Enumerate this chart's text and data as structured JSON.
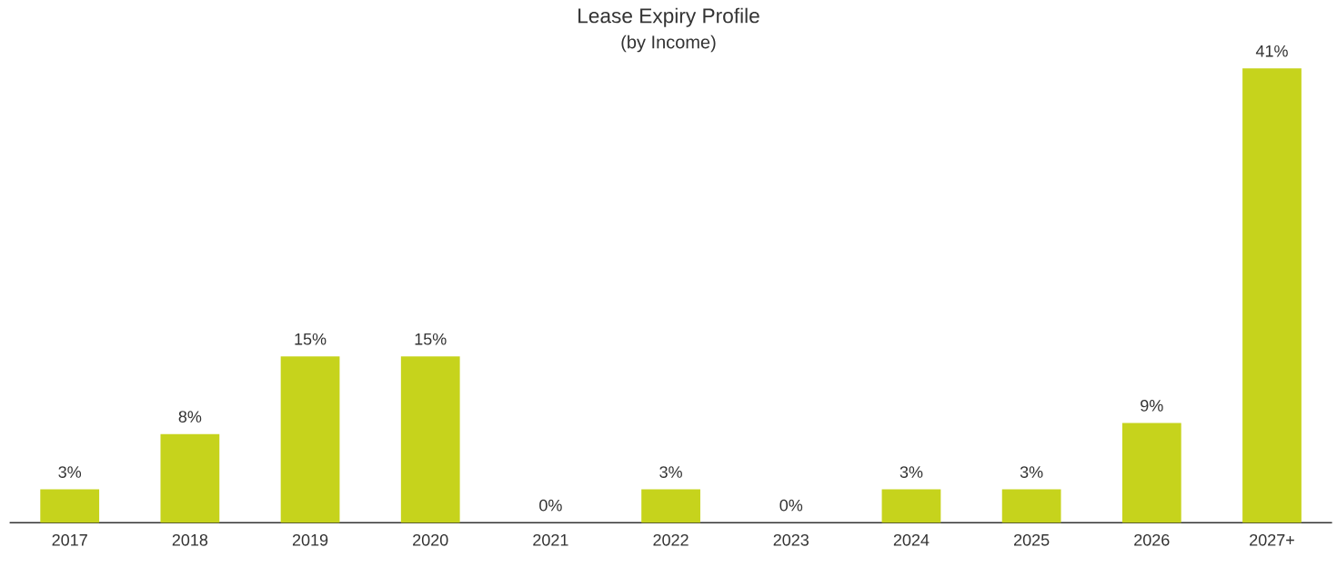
{
  "chart_data": {
    "type": "bar",
    "title": "Lease Expiry Profile",
    "subtitle": "(by Income)",
    "categories": [
      "2017",
      "2018",
      "2019",
      "2020",
      "2021",
      "2022",
      "2023",
      "2024",
      "2025",
      "2026",
      "2027+"
    ],
    "values": [
      3,
      8,
      15,
      15,
      0,
      3,
      0,
      3,
      3,
      9,
      41
    ],
    "value_labels": [
      "3%",
      "8%",
      "15%",
      "15%",
      "0%",
      "3%",
      "0%",
      "3%",
      "3%",
      "9%",
      "41%"
    ],
    "color": "#c6d31c"
  }
}
